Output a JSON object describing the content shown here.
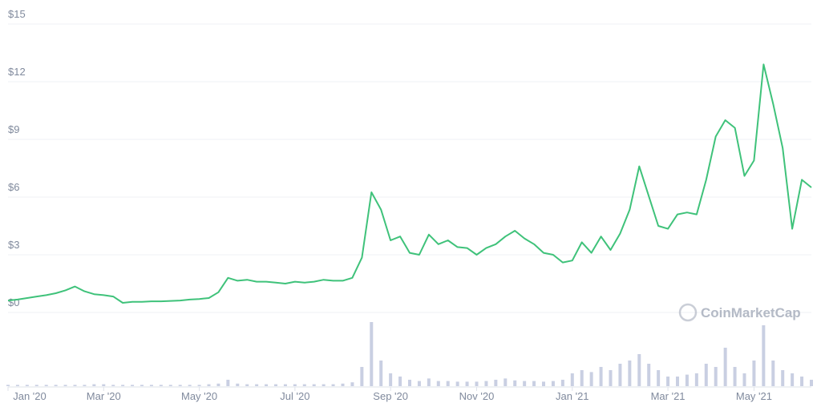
{
  "chart_data": {
    "type": "line",
    "watermark": "CoinMarketCap",
    "categories": [
      "Jan '20",
      null,
      null,
      null,
      null,
      null,
      null,
      null,
      null,
      null,
      "Mar '20",
      null,
      null,
      null,
      null,
      null,
      null,
      null,
      null,
      null,
      "May '20",
      null,
      null,
      null,
      null,
      null,
      null,
      null,
      null,
      null,
      "Jul '20",
      null,
      null,
      null,
      null,
      null,
      null,
      null,
      null,
      null,
      "Sep '20",
      null,
      null,
      null,
      null,
      null,
      null,
      null,
      null,
      "Nov '20",
      null,
      null,
      null,
      null,
      null,
      null,
      null,
      null,
      null,
      "Jan '21",
      null,
      null,
      null,
      null,
      null,
      null,
      null,
      null,
      null,
      "Mar '21",
      null,
      null,
      null,
      null,
      null,
      null,
      null,
      null,
      "May '21",
      null,
      null,
      null,
      null,
      null,
      null
    ],
    "series": [
      {
        "color": "#3fc27a",
        "values": [
          0.62,
          0.67,
          0.75,
          0.83,
          0.9,
          1.0,
          1.15,
          1.35,
          1.1,
          0.95,
          0.9,
          0.83,
          0.5,
          0.55,
          0.55,
          0.58,
          0.58,
          0.6,
          0.62,
          0.67,
          0.7,
          0.75,
          1.05,
          1.8,
          1.65,
          1.7,
          1.6,
          1.6,
          1.55,
          1.5,
          1.6,
          1.55,
          1.6,
          1.7,
          1.65,
          1.65,
          1.8,
          2.85,
          6.25,
          5.35,
          3.75,
          3.95,
          3.1,
          3.0,
          4.05,
          3.55,
          3.75,
          3.4,
          3.35,
          3.0,
          3.35,
          3.55,
          3.95,
          4.25,
          3.85,
          3.55,
          3.1,
          3.0,
          2.6,
          2.7,
          3.65,
          3.1,
          3.95,
          3.25,
          4.1,
          5.35,
          7.6,
          6.05,
          4.5,
          4.35,
          5.1,
          5.2,
          5.1,
          6.9,
          9.15,
          10.0,
          9.6,
          7.1,
          7.9,
          12.9,
          10.85,
          8.55,
          4.35,
          6.9,
          6.5
        ]
      },
      {
        "color": "#c9cfe2",
        "axis": "y2",
        "values": [
          2,
          2,
          2,
          2,
          2,
          2,
          2,
          2,
          2,
          3,
          3,
          2,
          2,
          2,
          2,
          2,
          2,
          2,
          2,
          2,
          2,
          3,
          4,
          10,
          4,
          3,
          3,
          3,
          3,
          3,
          3,
          3,
          3,
          3,
          3,
          4,
          6,
          30,
          100,
          40,
          20,
          15,
          10,
          8,
          12,
          8,
          8,
          7,
          7,
          7,
          8,
          10,
          12,
          9,
          8,
          8,
          7,
          8,
          10,
          20,
          25,
          22,
          30,
          25,
          35,
          40,
          50,
          35,
          25,
          15,
          15,
          18,
          20,
          35,
          30,
          60,
          30,
          20,
          40,
          95,
          40,
          25,
          20,
          15,
          10
        ]
      }
    ],
    "ylim": [
      0,
      15
    ],
    "yticks": [
      {
        "value": 0,
        "label": "$0"
      },
      {
        "value": 3,
        "label": "$3"
      },
      {
        "value": 6,
        "label": "$6"
      },
      {
        "value": 9,
        "label": "$9"
      },
      {
        "value": 12,
        "label": "$12"
      },
      {
        "value": 15,
        "label": "$15"
      }
    ],
    "y2lim": [
      0,
      100
    ],
    "grid": true
  }
}
